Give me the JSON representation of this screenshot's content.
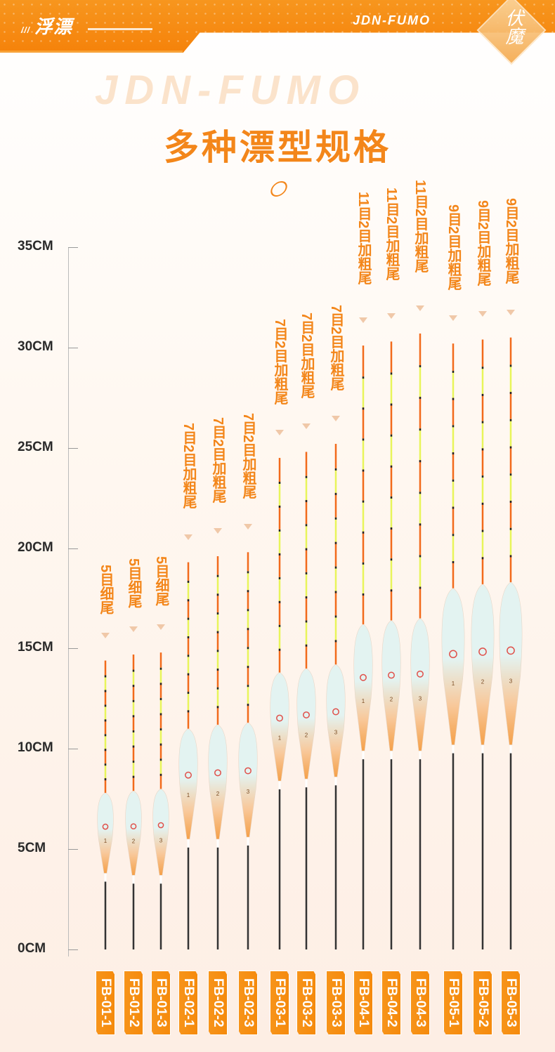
{
  "header": {
    "section_title": "浮漂",
    "section_prefix": "///",
    "brand": "JDN-FUMO",
    "logo_text": "伏魔"
  },
  "title": "多种漂型规格",
  "watermark": "JDN-FUMO",
  "scale": {
    "unit": "CM",
    "ticks": [
      "0CM",
      "5CM",
      "10CM",
      "15CM",
      "20CM",
      "25CM",
      "30CM",
      "35CM"
    ],
    "values": [
      0,
      5,
      10,
      15,
      20,
      25,
      30,
      35
    ]
  },
  "colors": {
    "accent": "#f3861a",
    "antenna_orange": "#f26a1b",
    "antenna_yellow": "#e8f55a",
    "body_top": "#e3f3f1",
    "body_bottom": "#f5a048"
  },
  "models": [
    {
      "code": "FB-01-1",
      "spec": "5目细尾",
      "length_cm": 14.4,
      "body_top_cm": 7.8,
      "body_bottom_cm": 3.8,
      "mark": "1"
    },
    {
      "code": "FB-01-2",
      "spec": "5目细尾",
      "length_cm": 14.7,
      "body_top_cm": 7.9,
      "body_bottom_cm": 3.7,
      "mark": "2"
    },
    {
      "code": "FB-01-3",
      "spec": "5目细尾",
      "length_cm": 14.8,
      "body_top_cm": 8.0,
      "body_bottom_cm": 3.7,
      "mark": "3"
    },
    {
      "code": "FB-02-1",
      "spec": "7目2目加粗尾",
      "length_cm": 19.3,
      "body_top_cm": 11.0,
      "body_bottom_cm": 5.5,
      "mark": "1"
    },
    {
      "code": "FB-02-2",
      "spec": "7目2目加粗尾",
      "length_cm": 19.6,
      "body_top_cm": 11.2,
      "body_bottom_cm": 5.5,
      "mark": "2"
    },
    {
      "code": "FB-02-3",
      "spec": "7目2目加粗尾",
      "length_cm": 19.8,
      "body_top_cm": 11.3,
      "body_bottom_cm": 5.6,
      "mark": "3"
    },
    {
      "code": "FB-03-1",
      "spec": "7目2目加粗尾",
      "length_cm": 24.5,
      "body_top_cm": 13.8,
      "body_bottom_cm": 8.4,
      "mark": "1"
    },
    {
      "code": "FB-03-2",
      "spec": "7目2目加粗尾",
      "length_cm": 24.8,
      "body_top_cm": 14.0,
      "body_bottom_cm": 8.5,
      "mark": "2"
    },
    {
      "code": "FB-03-3",
      "spec": "7目2目加粗尾",
      "length_cm": 25.2,
      "body_top_cm": 14.2,
      "body_bottom_cm": 8.6,
      "mark": "3"
    },
    {
      "code": "FB-04-1",
      "spec": "11目2目加粗尾",
      "length_cm": 30.1,
      "body_top_cm": 16.2,
      "body_bottom_cm": 9.9,
      "mark": "1"
    },
    {
      "code": "FB-04-2",
      "spec": "11目2目加粗尾",
      "length_cm": 30.3,
      "body_top_cm": 16.4,
      "body_bottom_cm": 9.9,
      "mark": "2"
    },
    {
      "code": "FB-04-3",
      "spec": "11目2目加粗尾",
      "length_cm": 30.7,
      "body_top_cm": 16.5,
      "body_bottom_cm": 9.9,
      "mark": "3"
    },
    {
      "code": "FB-05-1",
      "spec": "9目2目加粗尾",
      "length_cm": 30.2,
      "body_top_cm": 18.0,
      "body_bottom_cm": 10.2,
      "mark": "1"
    },
    {
      "code": "FB-05-2",
      "spec": "9目2目加粗尾",
      "length_cm": 30.4,
      "body_top_cm": 18.2,
      "body_bottom_cm": 10.2,
      "mark": "2"
    },
    {
      "code": "FB-05-3",
      "spec": "9目2目加粗尾",
      "length_cm": 30.5,
      "body_top_cm": 18.3,
      "body_bottom_cm": 10.2,
      "mark": "3"
    }
  ]
}
